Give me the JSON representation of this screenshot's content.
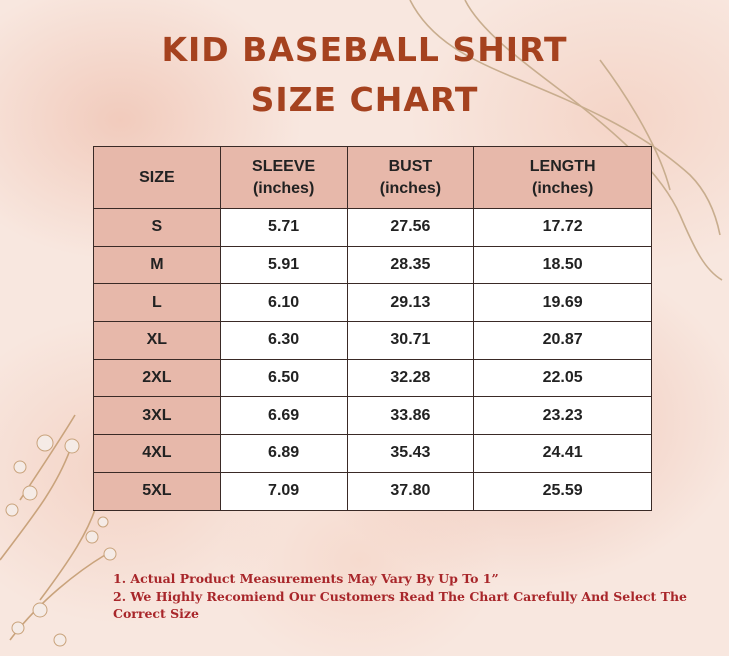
{
  "title": {
    "line1": "KID BASEBALL SHIRT",
    "line2": "SIZE CHART"
  },
  "table": {
    "headers": [
      {
        "line1": "SIZE",
        "line2": ""
      },
      {
        "line1": "SLEEVE",
        "line2": "(inches)"
      },
      {
        "line1": "BUST",
        "line2": "(inches)"
      },
      {
        "line1": "LENGTH",
        "line2": "(inches)"
      }
    ],
    "rows": [
      {
        "size": "S",
        "sleeve": "5.71",
        "bust": "27.56",
        "length": "17.72"
      },
      {
        "size": "M",
        "sleeve": "5.91",
        "bust": "28.35",
        "length": "18.50"
      },
      {
        "size": "L",
        "sleeve": "6.10",
        "bust": "29.13",
        "length": "19.69"
      },
      {
        "size": "XL",
        "sleeve": "6.30",
        "bust": "30.71",
        "length": "20.87"
      },
      {
        "size": "2XL",
        "sleeve": "6.50",
        "bust": "32.28",
        "length": "22.05"
      },
      {
        "size": "3XL",
        "sleeve": "6.69",
        "bust": "33.86",
        "length": "23.23"
      },
      {
        "size": "4XL",
        "sleeve": "6.89",
        "bust": "35.43",
        "length": "24.41"
      },
      {
        "size": "5XL",
        "sleeve": "7.09",
        "bust": "37.80",
        "length": "25.59"
      }
    ]
  },
  "notes": [
    "1. Actual Product Measurements May Vary By Up To 1”",
    "2. We Highly Recomiend Our Customers Read The Chart Carefully And Select The Correct Size"
  ],
  "colors": {
    "title": "#a5421f",
    "header_fill": "#e7b8aa",
    "notes": "#a8262a",
    "sparkle": "#f0a07a"
  }
}
